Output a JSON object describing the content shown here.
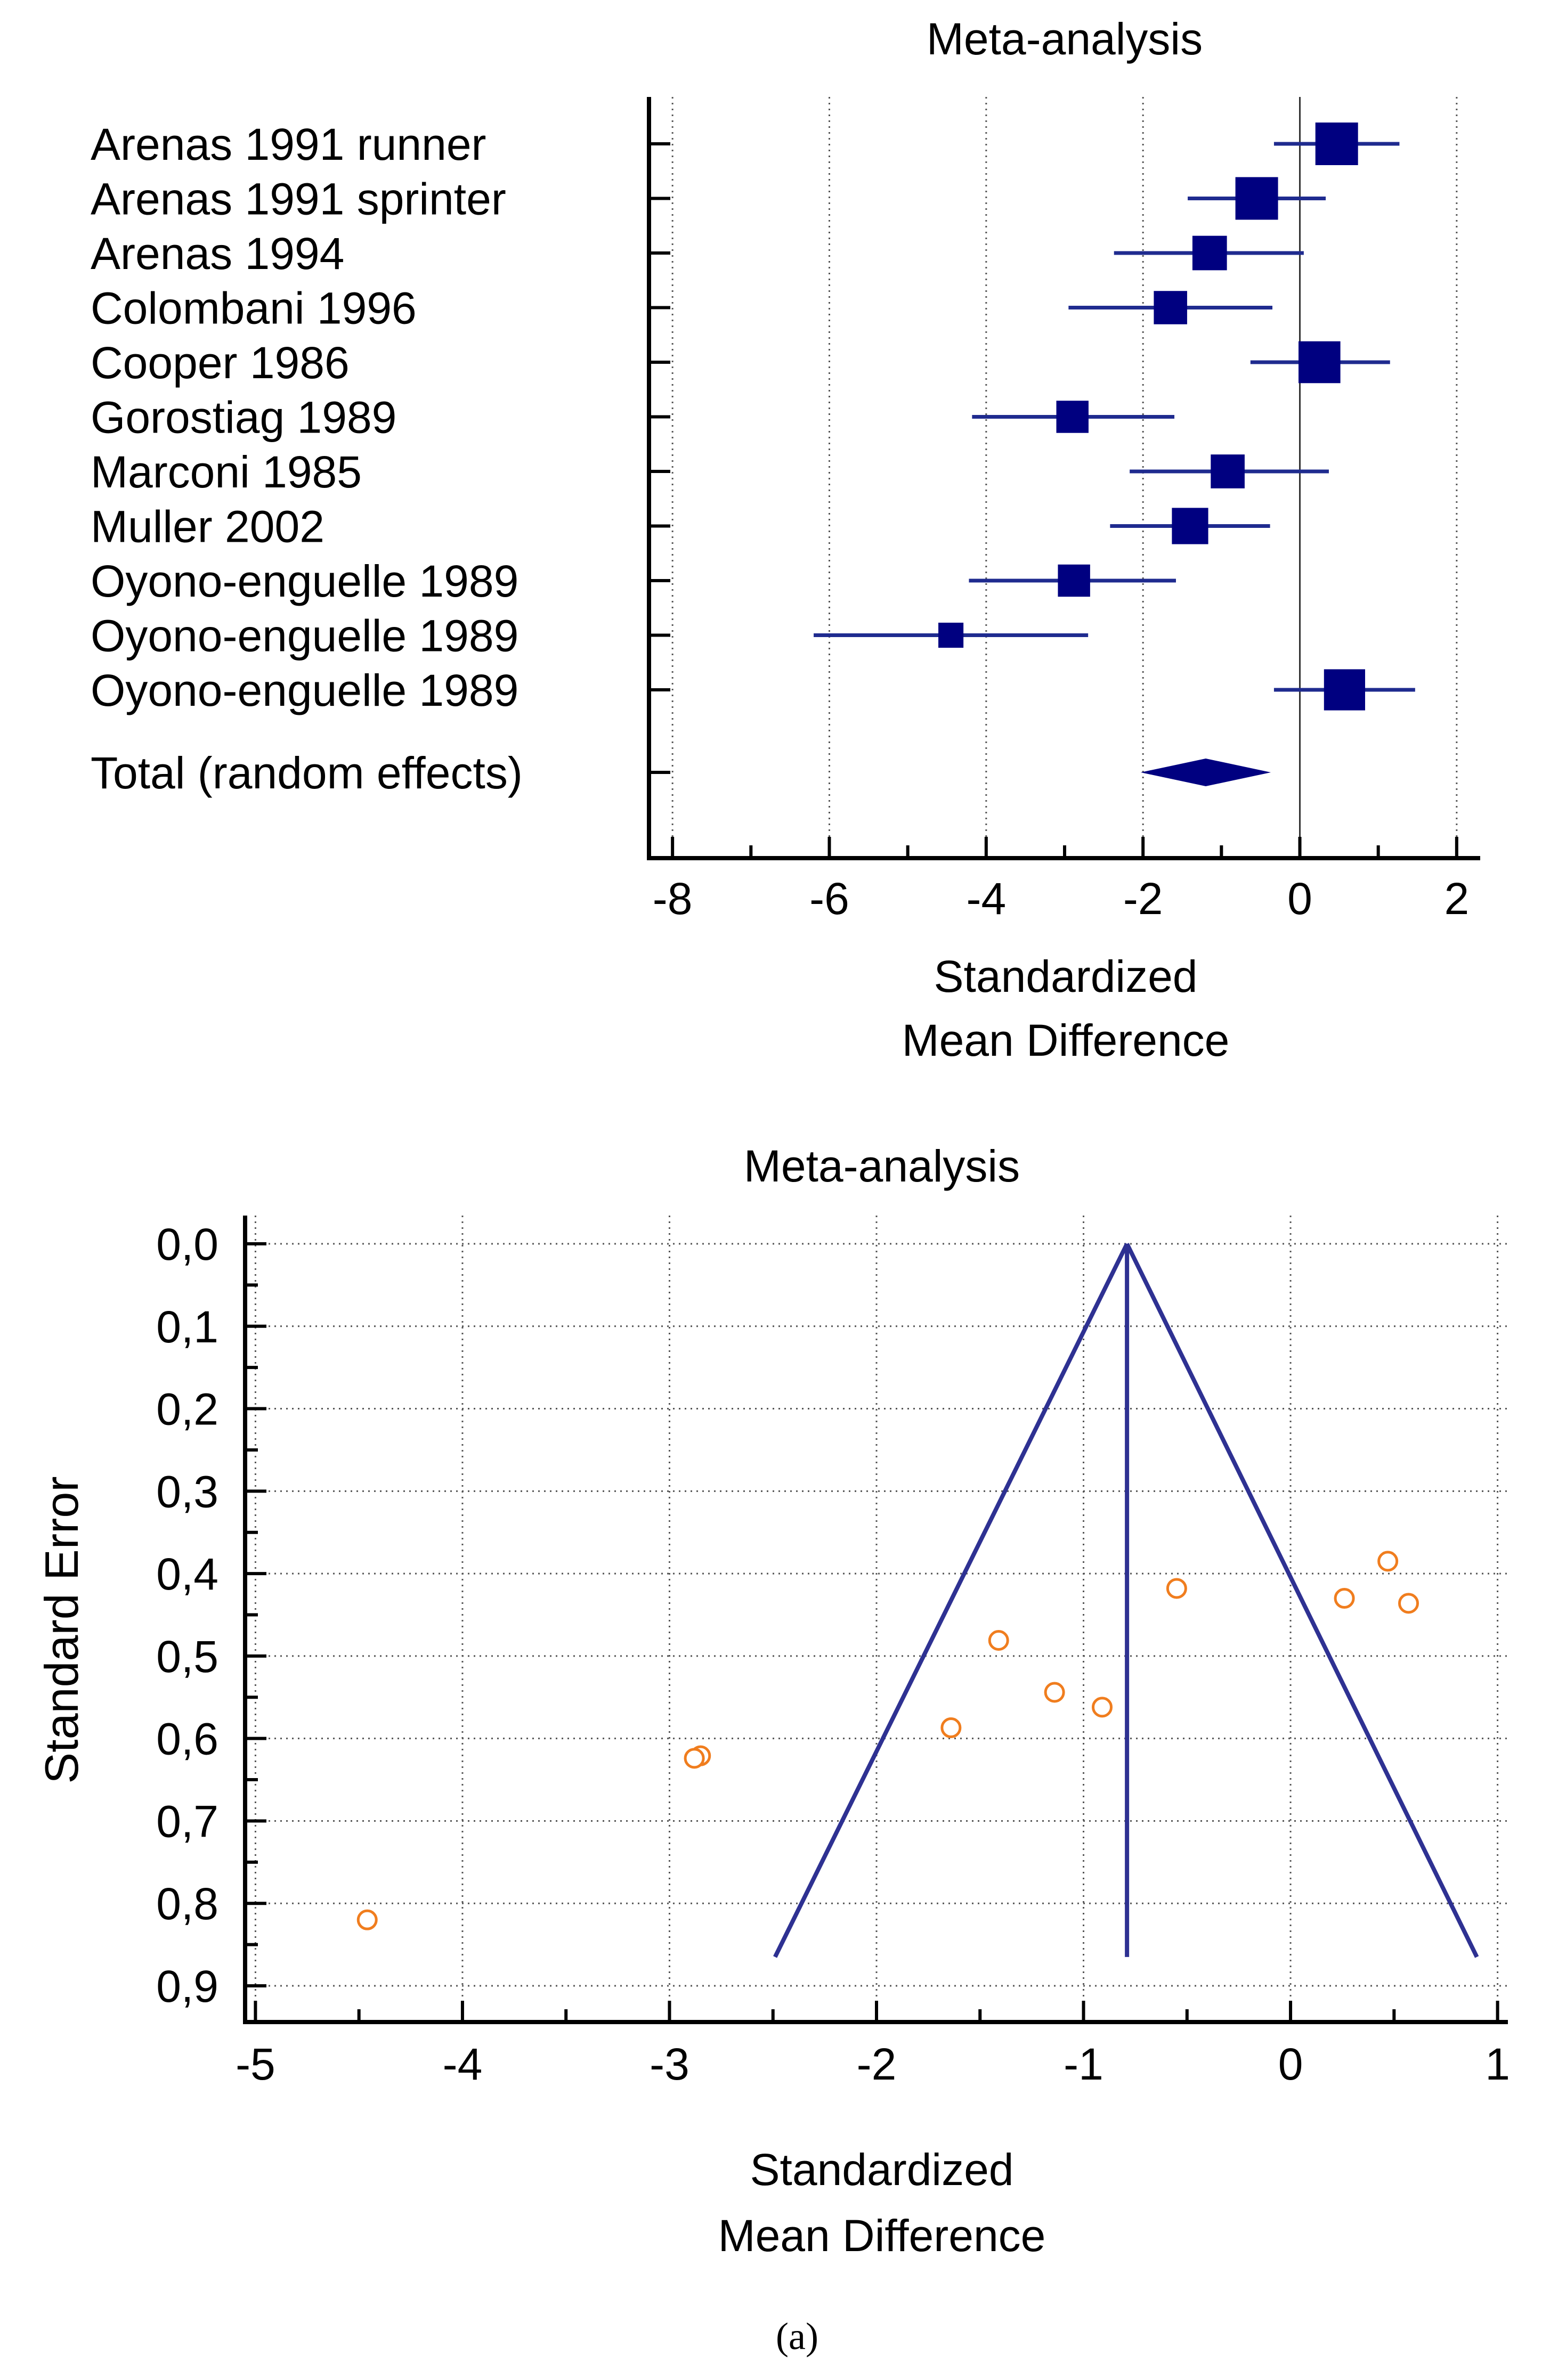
{
  "colors": {
    "marker": "#000080",
    "ci_line": "#1f2b8f",
    "funnel": "#2e3192",
    "point": "#f07d1e",
    "grid": "#555555",
    "axis": "#000000"
  },
  "caption": "(a)",
  "chart_data": [
    {
      "type": "forest",
      "title": "Meta-analysis",
      "xlabel_line1": "Standardized",
      "xlabel_line2": "Mean Difference",
      "xlim": [
        -8.3,
        2.3
      ],
      "xticks": [
        -8,
        -6,
        -4,
        -2,
        0,
        2
      ],
      "xtick_labels": [
        "-8",
        "-6",
        "-4",
        "-2",
        "0",
        "2"
      ],
      "grid": "vertical dotted",
      "studies": [
        {
          "label": "Arenas 1991 runner",
          "smd": 0.47,
          "ci_low": -0.33,
          "ci_high": 1.27,
          "weight": 10.0
        },
        {
          "label": "Arenas 1991  sprinter",
          "smd": -0.55,
          "ci_low": -1.43,
          "ci_high": 0.33,
          "weight": 10.0
        },
        {
          "label": "Arenas 1994",
          "smd": -1.15,
          "ci_low": -2.37,
          "ci_high": 0.05,
          "weight": 8.8
        },
        {
          "label": "Colombani 1996",
          "smd": -1.65,
          "ci_low": -2.95,
          "ci_high": -0.35,
          "weight": 8.6
        },
        {
          "label": "Cooper 1986",
          "smd": 0.25,
          "ci_low": -0.63,
          "ci_high": 1.15,
          "weight": 9.9
        },
        {
          "label": "Gorostiag 1989",
          "smd": -2.9,
          "ci_low": -4.18,
          "ci_high": -1.6,
          "weight": 8.4
        },
        {
          "label": "Marconi 1985",
          "smd": -0.92,
          "ci_low": -2.17,
          "ci_high": 0.37,
          "weight": 8.7
        },
        {
          "label": "Muller 2002",
          "smd": -1.4,
          "ci_low": -2.42,
          "ci_high": -0.38,
          "weight": 9.1
        },
        {
          "label": "Oyono-enguelle 1989",
          "smd": -2.88,
          "ci_low": -4.22,
          "ci_high": -1.58,
          "weight": 8.4
        },
        {
          "label": "Oyono-enguelle 1989",
          "smd": -4.45,
          "ci_low": -6.2,
          "ci_high": -2.7,
          "weight": 6.8
        },
        {
          "label": "Oyono-enguelle 1989",
          "smd": 0.57,
          "ci_low": -0.33,
          "ci_high": 1.47,
          "weight": 9.8
        }
      ],
      "total": {
        "label": "Total (random effects)",
        "smd": -1.2,
        "ci_low": -2.03,
        "ci_high": -0.37
      }
    },
    {
      "type": "funnel",
      "title": "Meta-analysis",
      "xlabel_line1": "Standardized",
      "xlabel_line2": "Mean Difference",
      "ylabel": "Standard Error",
      "xlim": [
        -5.05,
        1.05
      ],
      "ylim": [
        0,
        0.92
      ],
      "y_inverted": true,
      "xticks": [
        -5,
        -4,
        -3,
        -2,
        -1,
        0,
        1
      ],
      "xtick_labels": [
        "-5",
        "-4",
        "-3",
        "-2",
        "-1",
        "0",
        "1"
      ],
      "yticks": [
        0.0,
        0.1,
        0.2,
        0.3,
        0.4,
        0.5,
        0.6,
        0.7,
        0.8,
        0.9
      ],
      "ytick_labels": [
        "0,0",
        "0,1",
        "0,2",
        "0,3",
        "0,4",
        "0,5",
        "0,6",
        "0,7",
        "0,8",
        "0,9"
      ],
      "grid": "dotted",
      "pooled_estimate": -0.79,
      "funnel_apex_se": 0.0,
      "funnel_base_se": 0.865,
      "funnel_left_x_at_base": -2.49,
      "funnel_right_x_at_base": 0.9,
      "points": [
        {
          "x": 0.47,
          "y": 0.385
        },
        {
          "x": -0.55,
          "y": 0.418
        },
        {
          "x": 0.26,
          "y": 0.43
        },
        {
          "x": 0.57,
          "y": 0.436
        },
        {
          "x": -1.41,
          "y": 0.481
        },
        {
          "x": -1.14,
          "y": 0.544
        },
        {
          "x": -0.91,
          "y": 0.562
        },
        {
          "x": -1.64,
          "y": 0.587
        },
        {
          "x": -2.85,
          "y": 0.621
        },
        {
          "x": -2.88,
          "y": 0.624
        },
        {
          "x": -4.46,
          "y": 0.82
        }
      ]
    }
  ]
}
